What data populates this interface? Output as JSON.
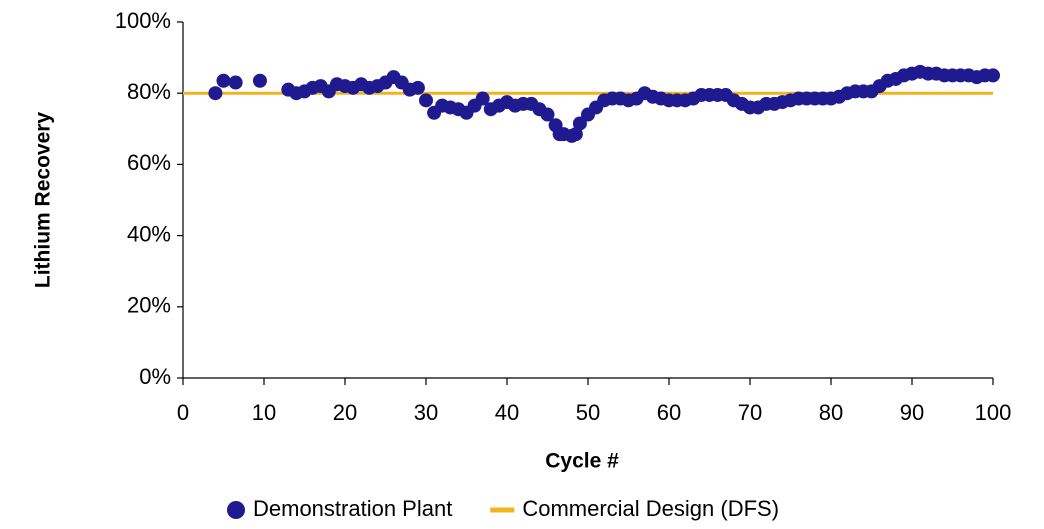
{
  "chart_data": {
    "type": "scatter",
    "x_label": "Cycle #",
    "y_label": "Lithium Recovery",
    "xlim": [
      0,
      100
    ],
    "xticks": [
      0,
      10,
      20,
      30,
      40,
      50,
      60,
      70,
      80,
      90,
      100
    ],
    "ylim": [
      0,
      100
    ],
    "yticks": [
      {
        "value": 0,
        "label": "0%"
      },
      {
        "value": 20,
        "label": "20%"
      },
      {
        "value": 40,
        "label": "40%"
      },
      {
        "value": 60,
        "label": "60%"
      },
      {
        "value": 80,
        "label": "80%"
      },
      {
        "value": 100,
        "label": "100%"
      }
    ],
    "grid": false,
    "legend": "bottom",
    "series": [
      {
        "name": "Demonstration Plant",
        "color": "#1f1a8f",
        "type": "scatter",
        "x": [
          4,
          5,
          6.5,
          9.5,
          13,
          14,
          15,
          16,
          17,
          18,
          19,
          20,
          21,
          22,
          23,
          24,
          25,
          26,
          27,
          28,
          29,
          30,
          31,
          32,
          33,
          34,
          35,
          36,
          37,
          38,
          39,
          40,
          41,
          42,
          43,
          44,
          45,
          46,
          46.5,
          47,
          48,
          48.5,
          49,
          50,
          51,
          52,
          53,
          54,
          55,
          56,
          57,
          58,
          59,
          60,
          61,
          62,
          63,
          64,
          65,
          66,
          67,
          68,
          69,
          70,
          71,
          72,
          73,
          74,
          75,
          76,
          77,
          78,
          79,
          80,
          81,
          82,
          83,
          84,
          85,
          86,
          87,
          88,
          89,
          90,
          91,
          92,
          93,
          94,
          95,
          96,
          97,
          98,
          99,
          100
        ],
        "values": [
          80,
          83.5,
          83,
          83.5,
          81,
          80,
          80.5,
          81.5,
          82,
          80.5,
          82.5,
          82,
          81.5,
          82.5,
          81.5,
          82,
          83,
          84.5,
          83,
          81,
          81.5,
          78,
          74.5,
          76.5,
          76,
          75.5,
          74.5,
          76.5,
          78.5,
          75.5,
          76.5,
          77.5,
          76.5,
          77,
          77,
          75.5,
          74,
          71,
          68.5,
          68.5,
          68,
          68.5,
          71.5,
          74,
          76,
          78,
          78.5,
          78.5,
          78,
          78.5,
          80,
          79,
          78.5,
          78,
          78,
          78,
          78.5,
          79.5,
          79.5,
          79.5,
          79.5,
          78,
          77,
          76,
          76,
          77,
          77,
          77.5,
          78,
          78.5,
          78.5,
          78.5,
          78.5,
          78.5,
          79,
          80,
          80.5,
          80.5,
          80.5,
          82,
          83.5,
          84,
          85,
          85.5,
          86,
          85.5,
          85.5,
          85,
          85,
          85,
          85,
          84.5,
          85,
          85
        ]
      },
      {
        "name": "Commercial Design (DFS)",
        "color": "#f0b41c",
        "type": "line",
        "x": [
          0,
          100
        ],
        "values": [
          80,
          80
        ]
      }
    ]
  }
}
